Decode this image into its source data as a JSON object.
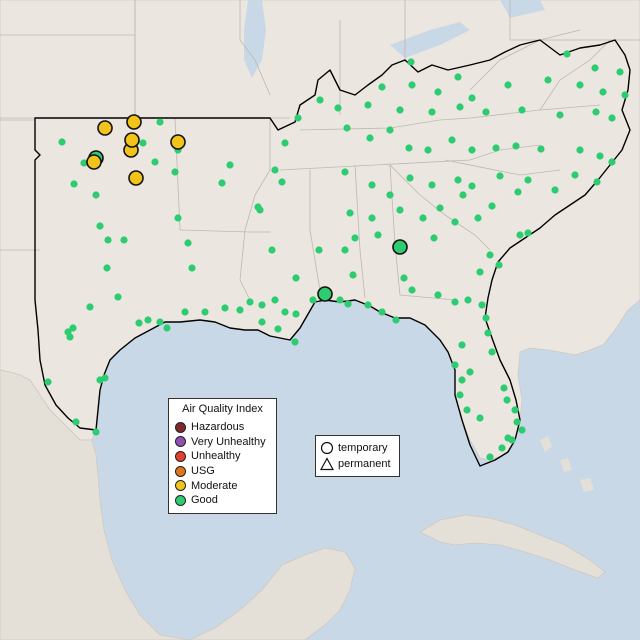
{
  "colors": {
    "water": "#c9d8e6",
    "land": "#ebe7e0",
    "land_outer": "#e4e0d8",
    "border": "#b9b4ae",
    "highlight_border": "#000000"
  },
  "legend": {
    "title": "Air Quality Index",
    "items": [
      {
        "label": "Hazardous",
        "color": "#7e2a2a"
      },
      {
        "label": "Very Unhealthy",
        "color": "#8f4fb3"
      },
      {
        "label": "Unhealthy",
        "color": "#e0402e"
      },
      {
        "label": "USG",
        "color": "#e0761c"
      },
      {
        "label": "Moderate",
        "color": "#f2c318"
      },
      {
        "label": "Good",
        "color": "#2ecc71"
      }
    ]
  },
  "shape_legend": {
    "items": [
      {
        "label": "temporary",
        "icon": "circle-icon"
      },
      {
        "label": "permanent",
        "icon": "triangle-icon"
      }
    ]
  }
}
